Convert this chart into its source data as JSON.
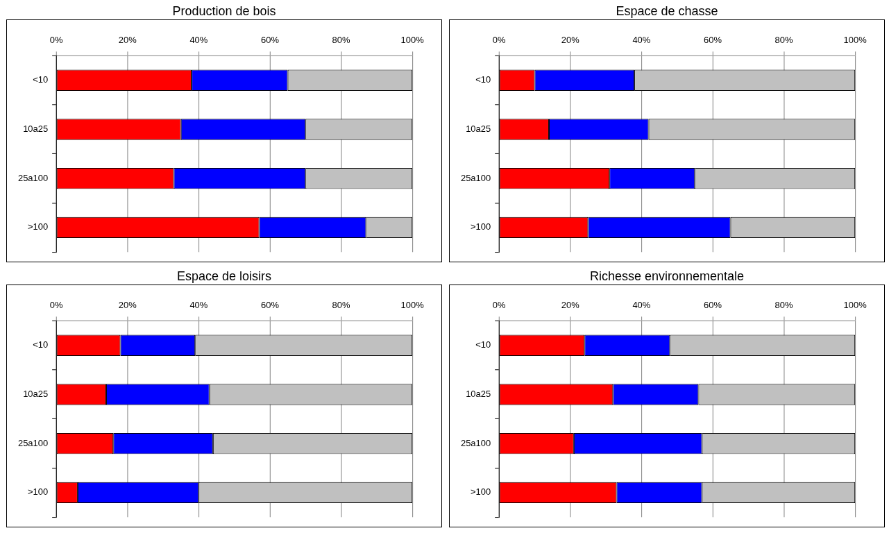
{
  "chart_data": [
    {
      "type": "bar",
      "title": "Production de bois",
      "orientation": "horizontal",
      "stacked": true,
      "categories": [
        "<10",
        "10a25",
        "25a100",
        ">100"
      ],
      "series": [
        {
          "color": "#ff0000",
          "values": [
            38,
            35,
            33,
            57
          ]
        },
        {
          "color": "#0000ff",
          "values": [
            27,
            35,
            37,
            30
          ]
        },
        {
          "color": "#c0c0c0",
          "values": [
            35,
            30,
            30,
            13
          ]
        }
      ],
      "xlim": [
        0,
        100
      ],
      "xticks": [
        {
          "value": 0,
          "label": "0%"
        },
        {
          "value": 20,
          "label": "20%"
        },
        {
          "value": 40,
          "label": "40%"
        },
        {
          "value": 60,
          "label": "60%"
        },
        {
          "value": 80,
          "label": "80%"
        },
        {
          "value": 100,
          "label": "100%"
        }
      ],
      "grid": "x",
      "legend": false
    },
    {
      "type": "bar",
      "title": "Espace de chasse",
      "orientation": "horizontal",
      "stacked": true,
      "categories": [
        "<10",
        "10a25",
        "25a100",
        ">100"
      ],
      "series": [
        {
          "color": "#ff0000",
          "values": [
            10,
            14,
            31,
            25
          ]
        },
        {
          "color": "#0000ff",
          "values": [
            28,
            28,
            24,
            40
          ]
        },
        {
          "color": "#c0c0c0",
          "values": [
            62,
            58,
            45,
            35
          ]
        }
      ],
      "xlim": [
        0,
        100
      ],
      "xticks": [
        {
          "value": 0,
          "label": "0%"
        },
        {
          "value": 20,
          "label": "20%"
        },
        {
          "value": 40,
          "label": "40%"
        },
        {
          "value": 60,
          "label": "60%"
        },
        {
          "value": 80,
          "label": "80%"
        },
        {
          "value": 100,
          "label": "100%"
        }
      ],
      "grid": "x",
      "legend": false
    },
    {
      "type": "bar",
      "title": "Espace de loisirs",
      "orientation": "horizontal",
      "stacked": true,
      "categories": [
        "<10",
        "10a25",
        "25a100",
        ">100"
      ],
      "series": [
        {
          "color": "#ff0000",
          "values": [
            18,
            14,
            16,
            6
          ]
        },
        {
          "color": "#0000ff",
          "values": [
            21,
            29,
            28,
            34
          ]
        },
        {
          "color": "#c0c0c0",
          "values": [
            61,
            57,
            56,
            60
          ]
        }
      ],
      "xlim": [
        0,
        100
      ],
      "xticks": [
        {
          "value": 0,
          "label": "0%"
        },
        {
          "value": 20,
          "label": "20%"
        },
        {
          "value": 40,
          "label": "40%"
        },
        {
          "value": 60,
          "label": "60%"
        },
        {
          "value": 80,
          "label": "80%"
        },
        {
          "value": 100,
          "label": "100%"
        }
      ],
      "grid": "x",
      "legend": false
    },
    {
      "type": "bar",
      "title": "Richesse environnementale",
      "orientation": "horizontal",
      "stacked": true,
      "categories": [
        "<10",
        "10a25",
        "25a100",
        ">100"
      ],
      "series": [
        {
          "color": "#ff0000",
          "values": [
            24,
            32,
            21,
            33
          ]
        },
        {
          "color": "#0000ff",
          "values": [
            24,
            24,
            36,
            24
          ]
        },
        {
          "color": "#c0c0c0",
          "values": [
            52,
            44,
            43,
            43
          ]
        }
      ],
      "xlim": [
        0,
        100
      ],
      "xticks": [
        {
          "value": 0,
          "label": "0%"
        },
        {
          "value": 20,
          "label": "20%"
        },
        {
          "value": 40,
          "label": "40%"
        },
        {
          "value": 60,
          "label": "60%"
        },
        {
          "value": 80,
          "label": "80%"
        },
        {
          "value": 100,
          "label": "100%"
        }
      ],
      "grid": "x",
      "legend": false
    }
  ]
}
